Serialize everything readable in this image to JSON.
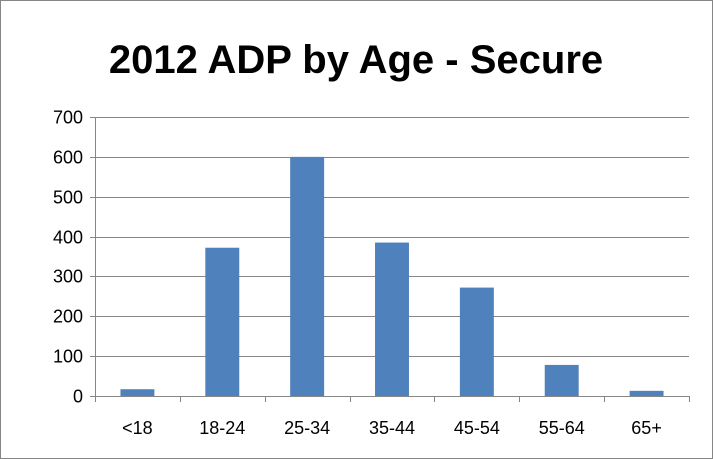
{
  "chart_data": {
    "type": "bar",
    "title": "2012 ADP by Age - Secure",
    "xlabel": "",
    "ylabel": "",
    "categories": [
      "<18",
      "18-24",
      "25-34",
      "35-44",
      "45-54",
      "55-64",
      "65+"
    ],
    "values": [
      17,
      372,
      600,
      385,
      272,
      78,
      13
    ],
    "ylim": [
      0,
      700
    ],
    "yticks": [
      "0",
      "100",
      "200",
      "300",
      "400",
      "500",
      "600",
      "700"
    ],
    "grid": true,
    "legend": "none",
    "bar_color": "#4F81BD",
    "grid_color": "#868686"
  }
}
